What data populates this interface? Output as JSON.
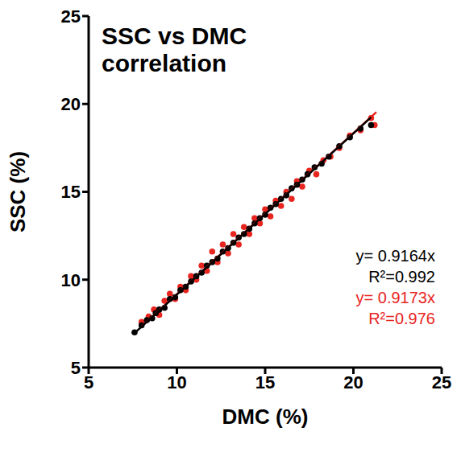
{
  "chart_data": {
    "type": "scatter",
    "title": "SSC vs DMC correlation",
    "xlabel": "DMC (%)",
    "ylabel": "SSC (%)",
    "xlim": [
      5,
      25
    ],
    "ylim": [
      5,
      25
    ],
    "xticks": [
      5,
      10,
      15,
      20,
      25
    ],
    "yticks": [
      5,
      10,
      15,
      20,
      25
    ],
    "series": [
      {
        "type": "scatter",
        "color": "#e8251f",
        "x": [
          8.0,
          8.4,
          8.7,
          9.0,
          9.3,
          9.6,
          9.9,
          10.2,
          10.5,
          10.8,
          11.1,
          11.4,
          11.7,
          12.0,
          12.3,
          12.6,
          12.9,
          13.2,
          13.5,
          13.8,
          14.1,
          14.4,
          14.7,
          15.0,
          15.3,
          15.6,
          15.9,
          16.2,
          16.5,
          16.8,
          17.1,
          17.5,
          17.9,
          18.3,
          18.7,
          19.2,
          19.8,
          20.4,
          21.0,
          21.2
        ],
        "values": [
          7.6,
          7.9,
          8.3,
          8.0,
          8.8,
          9.2,
          8.9,
          9.6,
          9.4,
          10.2,
          10.0,
          10.8,
          10.5,
          11.6,
          11.0,
          12.0,
          11.5,
          12.6,
          12.0,
          13.0,
          12.6,
          13.5,
          13.2,
          14.0,
          13.6,
          14.5,
          14.2,
          15.0,
          14.6,
          15.6,
          15.3,
          16.2,
          16.0,
          16.8,
          17.0,
          17.5,
          18.2,
          18.5,
          19.2,
          18.8
        ]
      },
      {
        "type": "scatter",
        "color": "#000000",
        "x": [
          7.6,
          8.0,
          8.3,
          8.6,
          8.8,
          9.0,
          9.3,
          9.6,
          9.9,
          10.2,
          10.5,
          10.8,
          11.1,
          11.4,
          11.7,
          12.0,
          12.3,
          12.6,
          12.9,
          13.2,
          13.5,
          13.8,
          14.1,
          14.4,
          14.7,
          15.0,
          15.3,
          15.6,
          15.9,
          16.2,
          16.5,
          16.8,
          17.1,
          17.4,
          17.8,
          18.2,
          18.6,
          19.2,
          19.8,
          20.4,
          21.0
        ],
        "values": [
          7.0,
          7.4,
          7.7,
          7.8,
          8.1,
          8.3,
          8.4,
          8.9,
          9.0,
          9.4,
          9.6,
          9.9,
          10.2,
          10.4,
          10.8,
          11.0,
          11.2,
          11.6,
          11.8,
          12.1,
          12.4,
          12.6,
          12.9,
          13.2,
          13.5,
          13.7,
          14.1,
          14.3,
          14.6,
          14.8,
          15.2,
          15.4,
          15.7,
          16.0,
          16.4,
          16.6,
          17.0,
          17.6,
          18.1,
          18.6,
          18.8
        ]
      },
      {
        "type": "line",
        "color": "#e8251f",
        "x": [
          8.0,
          21.3
        ],
        "values": [
          7.34,
          19.54
        ]
      },
      {
        "type": "line",
        "color": "#000000",
        "x": [
          7.6,
          21.0
        ],
        "values": [
          6.96,
          19.24
        ]
      }
    ],
    "annotations": [
      {
        "text": "y= 0.9164x",
        "color": "#000000"
      },
      {
        "text": "R²=0.992",
        "color": "#000000"
      },
      {
        "text": "y= 0.9173x",
        "color": "#e8251f"
      },
      {
        "text": "R²=0.976",
        "color": "#e8251f"
      }
    ]
  }
}
